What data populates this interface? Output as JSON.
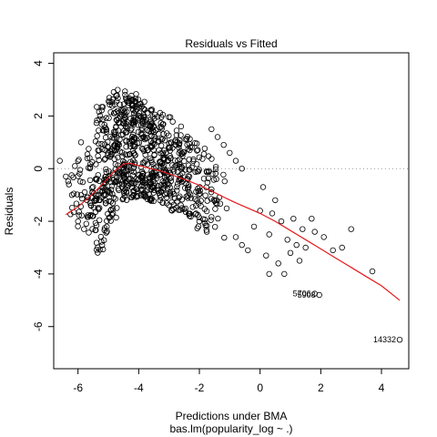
{
  "chart_data": {
    "type": "scatter",
    "title": "Residuals vs Fitted",
    "xlabel": "Predictions under BMA",
    "ylabel": "Residuals",
    "sublabel": "bas.lm(popularity_log ~ .)",
    "xlim": [
      -6.8,
      4.9
    ],
    "ylim": [
      -7.6,
      4.4
    ],
    "x_ticks": [
      -6,
      -4,
      -2,
      0,
      2,
      4
    ],
    "y_ticks": [
      -6,
      -4,
      -2,
      0,
      2,
      4
    ],
    "x_tick_labels": [
      "-6",
      "-4",
      "-2",
      "0",
      "2",
      "4"
    ],
    "y_tick_labels": [
      "-6",
      "-4",
      "-2",
      "0",
      "2",
      "4"
    ],
    "reference_line_y": 0,
    "smooth_color": "#e41a1c",
    "smooth": {
      "x": [
        -6.4,
        -6.0,
        -5.6,
        -5.2,
        -4.8,
        -4.5,
        -4.3,
        -4.0,
        -3.6,
        -3.2,
        -2.8,
        -2.4,
        -2.0,
        -1.6,
        -1.2,
        -0.8,
        -0.4,
        0.0,
        0.5,
        1.0,
        1.5,
        2.0,
        2.5,
        3.0,
        3.5,
        4.0,
        4.6
      ],
      "y": [
        -1.75,
        -1.45,
        -1.05,
        -0.6,
        -0.1,
        0.18,
        0.2,
        0.12,
        0.0,
        -0.12,
        -0.28,
        -0.45,
        -0.63,
        -0.85,
        -1.08,
        -1.3,
        -1.5,
        -1.7,
        -2.0,
        -2.35,
        -2.7,
        -3.05,
        -3.4,
        -3.75,
        -4.1,
        -4.45,
        -5.0
      ]
    },
    "labeled_points": [
      {
        "label": "14332",
        "x": 4.6,
        "y": -6.5
      },
      {
        "label": "5706",
        "x": 1.8,
        "y": -4.75
      },
      {
        "label": "5908",
        "x": 1.95,
        "y": -4.8
      }
    ],
    "outliers": [
      {
        "x": -6.6,
        "y": 0.3
      },
      {
        "x": -6.4,
        "y": -0.3
      },
      {
        "x": -6.3,
        "y": -0.6
      },
      {
        "x": -6.2,
        "y": -1.0
      },
      {
        "x": -6.1,
        "y": 0.1
      },
      {
        "x": -6.0,
        "y": -2.0
      },
      {
        "x": -5.9,
        "y": 1.0
      },
      {
        "x": -5.8,
        "y": -2.3
      },
      {
        "x": -1.6,
        "y": 1.5
      },
      {
        "x": -1.4,
        "y": 1.2
      },
      {
        "x": -1.2,
        "y": 0.9
      },
      {
        "x": -1.0,
        "y": 0.6
      },
      {
        "x": -0.8,
        "y": 0.3
      },
      {
        "x": -0.6,
        "y": 0.0
      },
      {
        "x": -0.8,
        "y": -2.6
      },
      {
        "x": -0.6,
        "y": -2.9
      },
      {
        "x": -0.4,
        "y": -3.1
      },
      {
        "x": -0.2,
        "y": -2.2
      },
      {
        "x": 0.0,
        "y": -1.6
      },
      {
        "x": 0.1,
        "y": -0.7
      },
      {
        "x": 0.2,
        "y": -3.3
      },
      {
        "x": 0.3,
        "y": -2.5
      },
      {
        "x": 0.4,
        "y": -1.7
      },
      {
        "x": 0.5,
        "y": -1.2
      },
      {
        "x": 0.6,
        "y": -3.6
      },
      {
        "x": 0.7,
        "y": -2.0
      },
      {
        "x": 0.8,
        "y": -4.0
      },
      {
        "x": 0.9,
        "y": -2.7
      },
      {
        "x": 1.0,
        "y": -3.2
      },
      {
        "x": 1.1,
        "y": -1.9
      },
      {
        "x": 1.2,
        "y": -2.9
      },
      {
        "x": 1.3,
        "y": -3.5
      },
      {
        "x": 1.4,
        "y": -2.3
      },
      {
        "x": 1.5,
        "y": -3.0
      },
      {
        "x": 1.7,
        "y": -1.9
      },
      {
        "x": 1.8,
        "y": -2.4
      },
      {
        "x": 2.1,
        "y": -2.6
      },
      {
        "x": 2.4,
        "y": -3.1
      },
      {
        "x": 2.7,
        "y": -3.0
      },
      {
        "x": 3.7,
        "y": -3.9
      },
      {
        "x": 3.0,
        "y": -2.3
      },
      {
        "x": 0.3,
        "y": -4.0
      }
    ]
  }
}
